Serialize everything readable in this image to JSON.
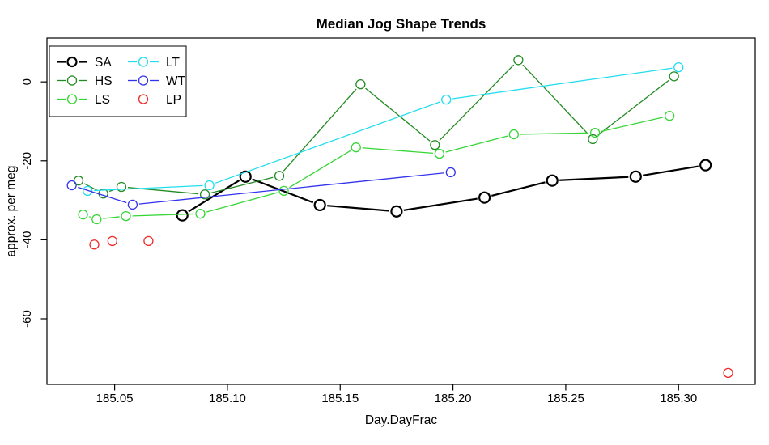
{
  "chart_data": {
    "type": "line",
    "title": "Median Jog Shape Trends",
    "xlabel": "Day.DayFrac",
    "ylabel": "approx. per meg",
    "xlim": [
      185.02,
      185.334
    ],
    "ylim": [
      -76.6,
      11.1
    ],
    "grid": false,
    "x_ticks": [
      185.05,
      185.1,
      185.15,
      185.2,
      185.25,
      185.3
    ],
    "x_tick_labels": [
      "185.05",
      "185.10",
      "185.15",
      "185.20",
      "185.25",
      "185.30"
    ],
    "y_ticks": [
      0,
      -20,
      -40,
      -60
    ],
    "y_tick_labels": [
      "0",
      "-20",
      "-40",
      "-60"
    ],
    "legend": {
      "position": "top-left",
      "ncol": 2,
      "entries": [
        "SA",
        "HS",
        "LS",
        "LT",
        "WT",
        "LP"
      ]
    },
    "series": [
      {
        "name": "SA",
        "color": "#000000",
        "line": true,
        "bold": true,
        "x": [
          185.08,
          185.108,
          185.141,
          185.175,
          185.214,
          185.244,
          185.281,
          185.312
        ],
        "y": [
          -33.8,
          -24.0,
          -31.2,
          -32.8,
          -29.3,
          -25.0,
          -24.0,
          -21.1
        ]
      },
      {
        "name": "HS",
        "color": "#228B22",
        "line": true,
        "bold": false,
        "x": [
          185.034,
          185.045,
          185.053,
          185.09,
          185.123,
          185.159,
          185.192,
          185.229,
          185.262,
          185.298
        ],
        "y": [
          -25.0,
          -28.3,
          -26.6,
          -28.5,
          -23.8,
          -0.6,
          -16.0,
          5.5,
          -14.5,
          1.4
        ]
      },
      {
        "name": "LS",
        "color": "#35D635",
        "line": true,
        "bold": false,
        "x": [
          185.036,
          185.042,
          185.055,
          185.088,
          185.125,
          185.157,
          185.194,
          185.227,
          185.263,
          185.296
        ],
        "y": [
          -33.6,
          -34.8,
          -34.0,
          -33.4,
          -27.6,
          -16.6,
          -18.2,
          -13.3,
          -12.9,
          -8.6
        ]
      },
      {
        "name": "LT",
        "color": "#22DDEE",
        "line": true,
        "bold": false,
        "x": [
          185.038,
          185.092,
          185.197,
          185.3
        ],
        "y": [
          -27.6,
          -26.2,
          -4.5,
          3.7
        ]
      },
      {
        "name": "WT",
        "color": "#3333EE",
        "line": true,
        "bold": false,
        "x": [
          185.031,
          185.058,
          185.199
        ],
        "y": [
          -26.2,
          -31.1,
          -22.9
        ]
      },
      {
        "name": "LP",
        "color": "#EE2A2A",
        "line": false,
        "bold": false,
        "x": [
          185.041,
          185.049,
          185.065,
          185.322
        ],
        "y": [
          -41.2,
          -40.3,
          -40.3,
          -73.7
        ]
      }
    ]
  }
}
